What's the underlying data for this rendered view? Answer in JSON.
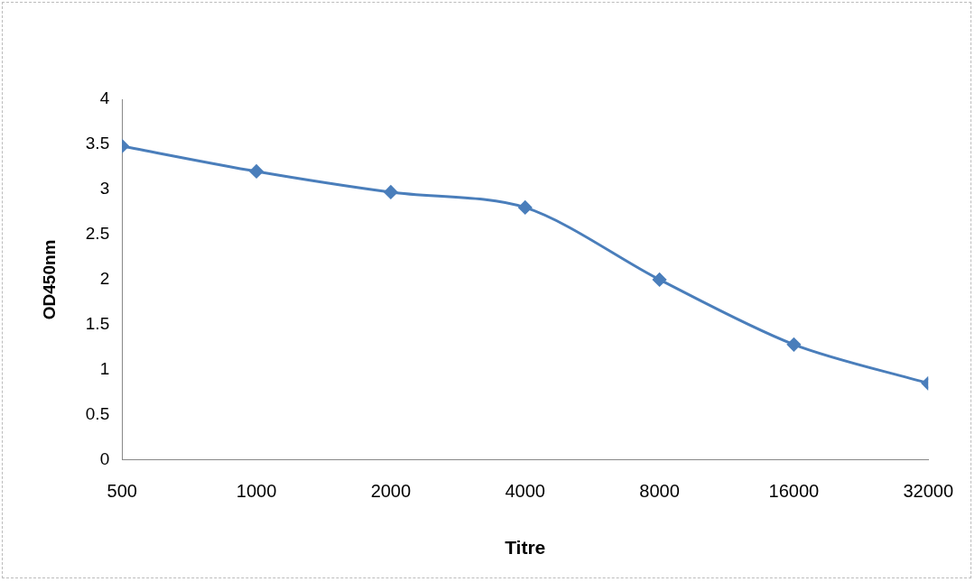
{
  "chart_data": {
    "type": "line",
    "x_label": "Titre",
    "y_label": "OD450nm",
    "categories": [
      "500",
      "1000",
      "2000",
      "4000",
      "8000",
      "16000",
      "32000"
    ],
    "values": [
      3.48,
      3.2,
      2.97,
      2.8,
      2.0,
      1.28,
      0.85
    ],
    "color": "#4a7ebb",
    "marker": "diamond",
    "ylim": [
      0,
      4
    ],
    "yticks": [
      0,
      0.5,
      1,
      1.5,
      2,
      2.5,
      3,
      3.5,
      4
    ],
    "grid": false
  }
}
